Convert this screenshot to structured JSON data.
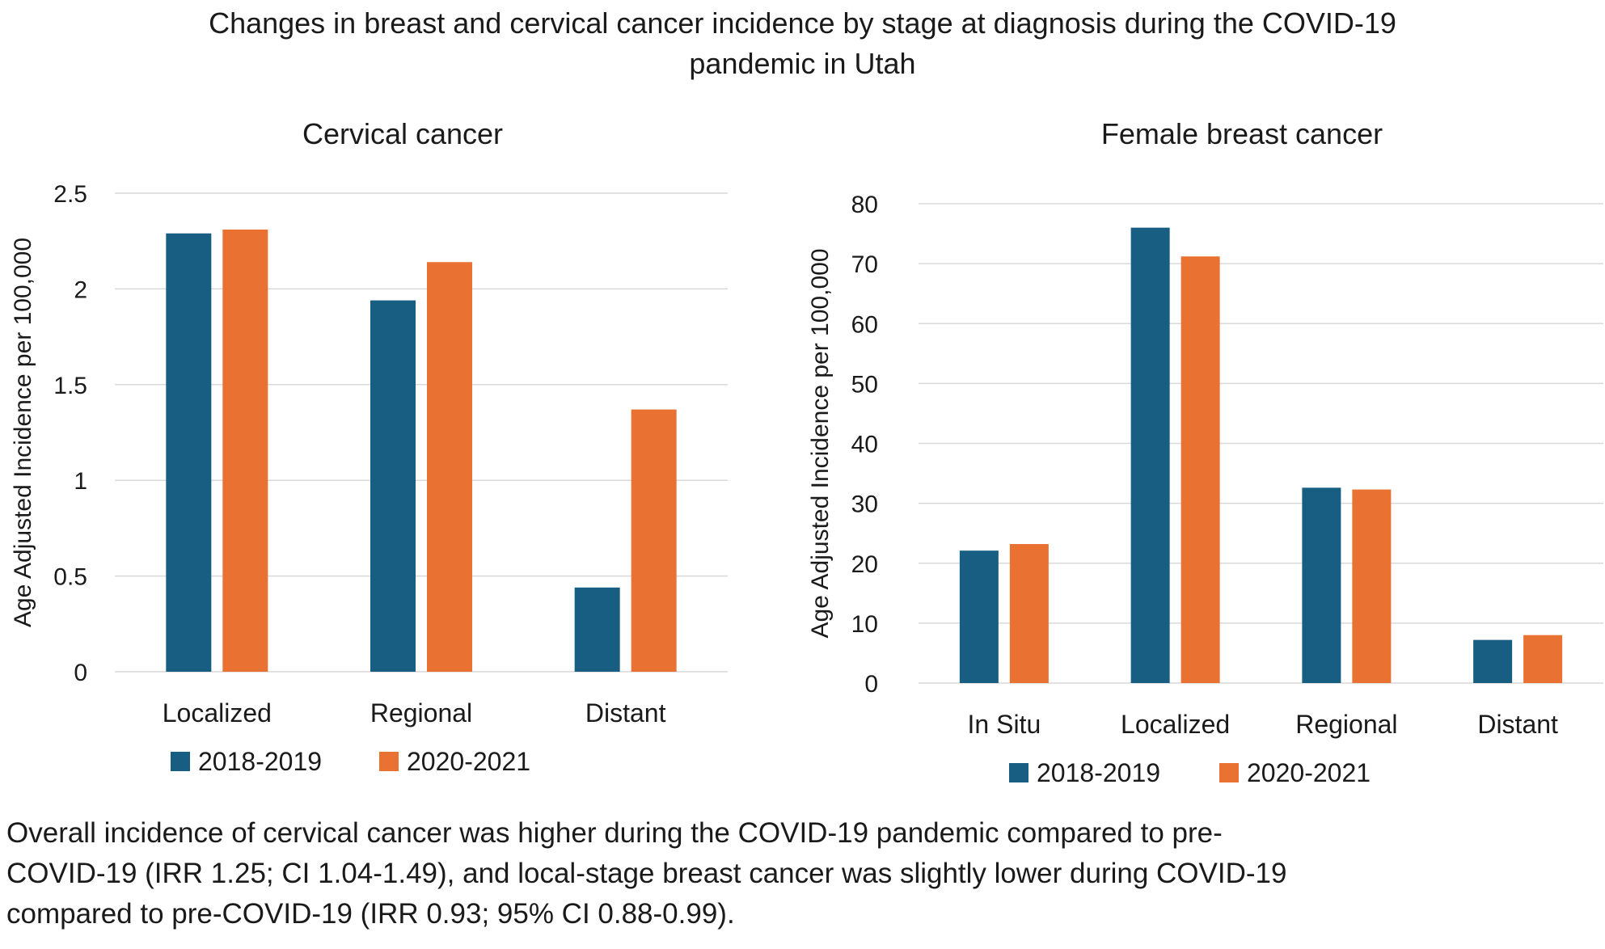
{
  "title_lines": [
    "Changes in breast and cervical cancer incidence by stage at diagnosis during the COVID-19",
    "pandemic in Utah"
  ],
  "caption_lines": [
    "Overall incidence of cervical cancer was higher during the COVID-19 pandemic compared to pre-",
    "COVID-19 (IRR 1.25; CI 1.04-1.49), and local-stage breast cancer was slightly lower during COVID-19",
    "compared to pre-COVID-19 (IRR 0.93; 95% CI 0.88-0.99)."
  ],
  "colors": {
    "series_2018_2019": "#175E82",
    "series_2020_2021": "#E97132",
    "grid": "#D9D9D9",
    "text": "#1a1a1a"
  },
  "chart_data": [
    {
      "type": "bar",
      "title": "Cervical cancer",
      "xlabel": "",
      "ylabel": "Age Adjusted Incidence per 100,000",
      "categories": [
        "Localized",
        "Regional",
        "Distant"
      ],
      "series": [
        {
          "name": "2018-2019",
          "values": [
            2.29,
            1.94,
            0.44
          ]
        },
        {
          "name": "2020-2021",
          "values": [
            2.31,
            2.14,
            1.37
          ]
        }
      ],
      "ylim": [
        0,
        2.5
      ],
      "yticks": [
        0,
        0.5,
        1,
        1.5,
        2,
        2.5
      ],
      "ytick_labels": [
        "0",
        "0.5",
        "1",
        "1.5",
        "2",
        "2.5"
      ],
      "grid": true,
      "legend": "bottom"
    },
    {
      "type": "bar",
      "title": "Female breast cancer",
      "xlabel": "",
      "ylabel": "Age Adjusted Incidence per 100,000",
      "categories": [
        "In Situ",
        "Localized",
        "Regional",
        "Distant"
      ],
      "series": [
        {
          "name": "2018-2019",
          "values": [
            22.1,
            76.0,
            32.6,
            7.2
          ]
        },
        {
          "name": "2020-2021",
          "values": [
            23.2,
            71.2,
            32.3,
            8.0
          ]
        }
      ],
      "ylim": [
        0,
        80
      ],
      "yticks": [
        0,
        10,
        20,
        30,
        40,
        50,
        60,
        70,
        80
      ],
      "ytick_labels": [
        "0",
        "10",
        "20",
        "30",
        "40",
        "50",
        "60",
        "70",
        "80"
      ],
      "grid": true,
      "legend": "bottom"
    }
  ]
}
